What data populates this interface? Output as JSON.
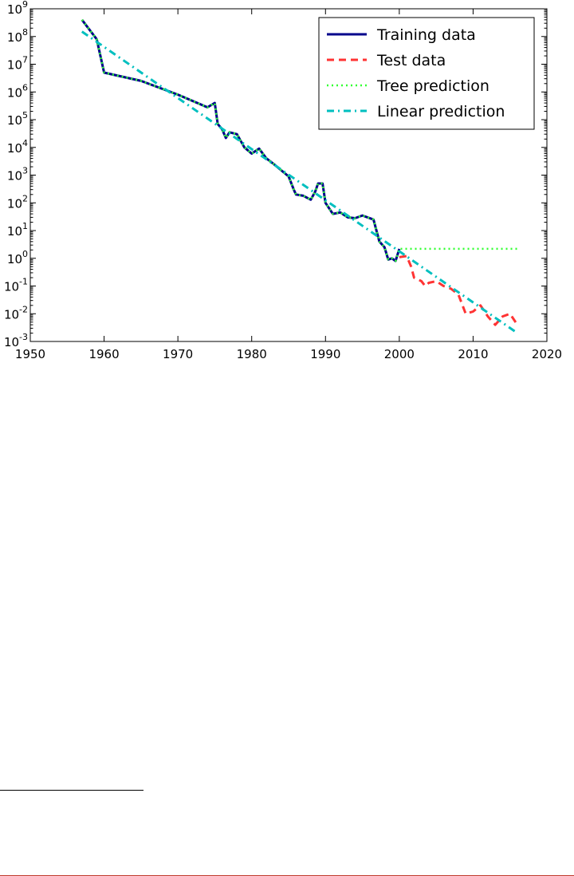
{
  "chart_data": {
    "type": "line",
    "title": "",
    "xlabel": "",
    "ylabel": "",
    "xlim": [
      1950,
      2020
    ],
    "ylim": [
      0.001,
      1000000000
    ],
    "yscale": "log",
    "grid": false,
    "legend_position": "top-right",
    "x_ticks": [
      1950,
      1960,
      1970,
      1980,
      1990,
      2000,
      2010,
      2020
    ],
    "y_tick_exponents": [
      -3,
      -2,
      -1,
      0,
      1,
      2,
      3,
      4,
      5,
      6,
      7,
      8,
      9
    ],
    "series": [
      {
        "name": "Training data",
        "color": "#00008b",
        "style": "solid",
        "x": [
          1957,
          1959,
          1960,
          1965,
          1970,
          1974,
          1975,
          1975.4,
          1976,
          1976.5,
          1977,
          1978,
          1979,
          1980,
          1981,
          1982,
          1983,
          1984,
          1985,
          1985.7,
          1986,
          1987,
          1988,
          1988.6,
          1989,
          1989.6,
          1990,
          1991,
          1992,
          1993,
          1994,
          1995,
          1996.5,
          1997.3,
          1998,
          1998.5,
          1999,
          1999.5,
          2000
        ],
        "y": [
          400000000,
          80000000,
          5000000,
          2500000,
          800000,
          280000,
          400000,
          70000,
          45000,
          22000,
          35000,
          30000,
          10000,
          6000,
          9000,
          4000,
          2500,
          1500,
          900,
          300,
          200,
          180,
          130,
          250,
          500,
          500,
          100,
          40,
          45,
          30,
          28,
          35,
          25,
          4,
          2.5,
          0.9,
          1.0,
          0.8,
          2.2
        ]
      },
      {
        "name": "Test data",
        "color": "#ff3333",
        "style": "dashed",
        "x": [
          2000,
          2001,
          2001.6,
          2002,
          2003,
          2003.5,
          2004,
          2005,
          2006,
          2007,
          2008,
          2009,
          2010,
          2011,
          2012,
          2013,
          2014,
          2015,
          2016
        ],
        "y": [
          1.1,
          1.2,
          0.5,
          0.2,
          0.15,
          0.1,
          0.13,
          0.15,
          0.1,
          0.08,
          0.05,
          0.01,
          0.012,
          0.02,
          0.008,
          0.004,
          0.008,
          0.01,
          0.004
        ]
      },
      {
        "name": "Tree prediction",
        "color": "#33ff33",
        "style": "dotted",
        "x": [
          1957,
          1959,
          1960,
          1965,
          1970,
          1974,
          1975,
          1975.4,
          1976,
          1976.5,
          1977,
          1978,
          1979,
          1980,
          1981,
          1982,
          1983,
          1984,
          1985,
          1985.7,
          1986,
          1987,
          1988,
          1988.6,
          1989,
          1989.6,
          1990,
          1991,
          1992,
          1993,
          1994,
          1995,
          1996.5,
          1997.3,
          1998,
          1998.5,
          1999,
          1999.5,
          2000,
          2016
        ],
        "y": [
          400000000,
          80000000,
          5000000,
          2500000,
          800000,
          280000,
          400000,
          70000,
          45000,
          22000,
          35000,
          30000,
          10000,
          6000,
          9000,
          4000,
          2500,
          1500,
          900,
          300,
          200,
          180,
          130,
          250,
          500,
          500,
          100,
          40,
          45,
          30,
          28,
          35,
          25,
          4,
          2.5,
          0.9,
          1.0,
          0.8,
          2.2,
          2.2
        ]
      },
      {
        "name": "Linear prediction",
        "color": "#00bfbf",
        "style": "dashdot",
        "x": [
          1957,
          2016
        ],
        "y": [
          150000000,
          0.002
        ]
      }
    ]
  }
}
